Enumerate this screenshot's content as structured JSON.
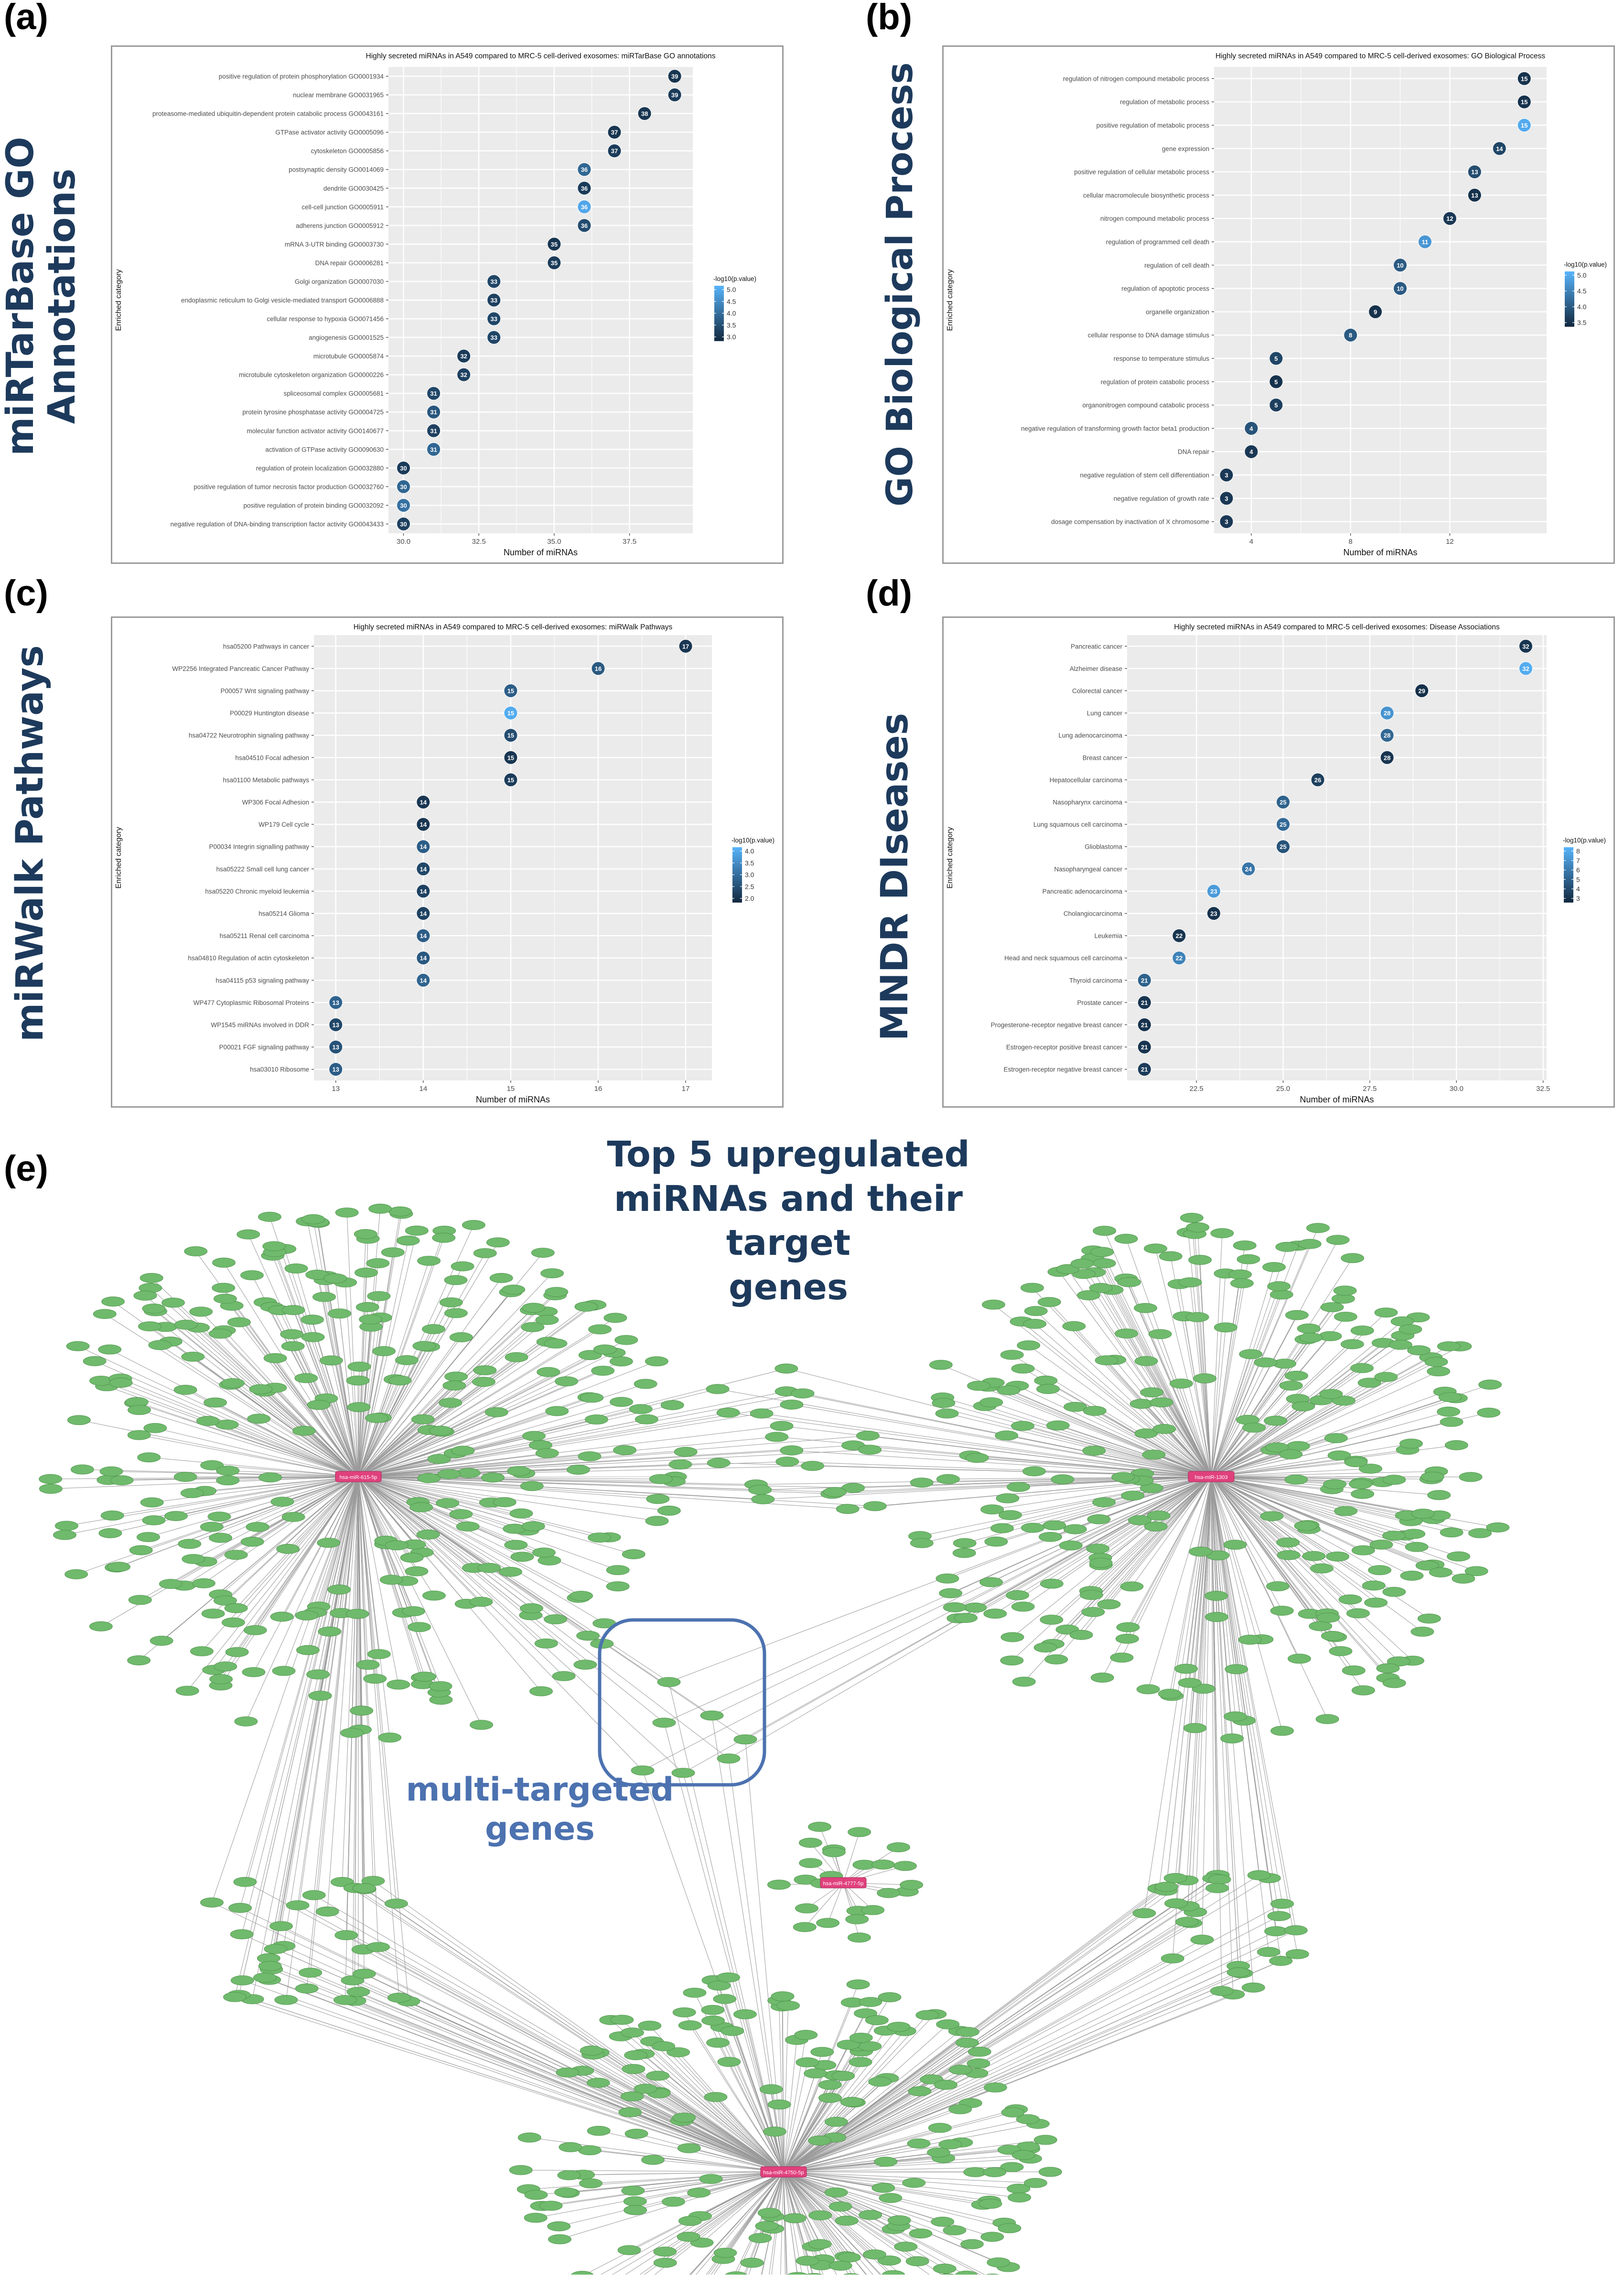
{
  "panels": {
    "a": {
      "letter": "(a)",
      "side_label_line1": "miRTarBase GO",
      "side_label_line2": "Annotations"
    },
    "b": {
      "letter": "(b)",
      "side_label": "GO Biological Process"
    },
    "c": {
      "letter": "(c)",
      "side_label": "miRWalk Pathways"
    },
    "d": {
      "letter": "(d)",
      "side_label": "MNDR DIseases"
    },
    "e": {
      "letter": "(e)",
      "title_line1": "Top 5 upregulated",
      "title_line2": "miRNAs and their target",
      "title_line3": "genes",
      "annotation_line1": "multi-targeted",
      "annotation_line2": "genes"
    }
  },
  "network": {
    "hub_labels": [
      "hsa-miR-615-5p",
      "hsa-miR-1303",
      "hsa-miR-4777-5p",
      "hsa-miR-4750-5p"
    ],
    "node_color": "#6fba6c",
    "hub_color": "#e0417d",
    "edge_color": "#9a9a9a",
    "highlight_color": "#4c72b0"
  },
  "chart_data": [
    {
      "type": "scatter",
      "title": "Highly secreted miRNAs in A549 compared to MRC-5 cell-derived exosomes: miRTarBase GO annotations",
      "xlabel": "Number of miRNAs",
      "ylabel": "Enriched category",
      "xlim": [
        29.5,
        39.6
      ],
      "xticks": [
        30.0,
        32.5,
        35.0,
        37.5
      ],
      "xtick_labels": [
        "30.0",
        "32.5",
        "35.0",
        "37.5"
      ],
      "legend_title": "-log10(p.value)",
      "legend_ticks": [
        "5.0",
        "4.5",
        "4.0",
        "3.5",
        "3.0"
      ],
      "color_range": [
        2.8,
        5.3
      ],
      "categories": [
        "positive regulation of protein phosphorylation GO0001934",
        "nuclear membrane GO0031965",
        "proteasome-mediated ubiquitin-dependent protein catabolic process GO0043161",
        "GTPase activator activity GO0005096",
        "cytoskeleton GO0005856",
        "postsynaptic density GO0014069",
        "dendrite GO0030425",
        "cell-cell junction GO0005911",
        "adherens junction GO0005912",
        "mRNA 3-UTR binding GO0003730",
        "DNA repair GO0006281",
        "Golgi organization GO0007030",
        "endoplasmic reticulum to Golgi vesicle-mediated transport GO0006888",
        "cellular response to hypoxia GO0071456",
        "angiogenesis GO0001525",
        "microtubule GO0005874",
        "microtubule cytoskeleton organization GO0000226",
        "spliceosomal complex GO0005681",
        "protein tyrosine phosphatase activity GO0004725",
        "molecular function activator activity GO0140677",
        "activation of GTPase activity GO0090630",
        "regulation of protein localization GO0032880",
        "positive regulation of tumor necrosis factor production GO0032760",
        "positive regulation of protein binding GO0032092",
        "negative regulation of DNA-binding transcription factor activity GO0043433"
      ],
      "values": [
        39,
        39,
        38,
        37,
        37,
        36,
        36,
        36,
        36,
        35,
        35,
        33,
        33,
        33,
        33,
        32,
        32,
        31,
        31,
        31,
        31,
        30,
        30,
        30,
        30
      ],
      "pvalues": [
        3.0,
        3.1,
        3.0,
        3.0,
        3.1,
        3.9,
        3.1,
        5.1,
        3.4,
        3.0,
        3.1,
        3.3,
        3.2,
        3.3,
        3.3,
        3.1,
        3.2,
        3.3,
        3.6,
        3.2,
        3.9,
        3.1,
        3.9,
        4.1,
        3.2
      ]
    },
    {
      "type": "scatter",
      "title": "Highly secreted miRNAs in A549 compared to MRC-5 cell-derived exosomes: GO Biological Process",
      "xlabel": "Number of miRNAs",
      "ylabel": "Enriched category",
      "xlim": [
        2.5,
        15.9
      ],
      "xticks": [
        4,
        8,
        12
      ],
      "xtick_labels": [
        "4",
        "8",
        "12"
      ],
      "legend_title": "-log10(p.value)",
      "legend_ticks": [
        "5.0",
        "4.5",
        "4.0",
        "3.5"
      ],
      "color_range": [
        3.2,
        5.2
      ],
      "categories": [
        "regulation of nitrogen compound metabolic process",
        "regulation of metabolic process",
        "positive regulation of metabolic process",
        "gene expression",
        "positive regulation of cellular metabolic process",
        "cellular macromolecule biosynthetic process",
        "nitrogen compound metabolic process",
        "regulation of programmed cell death",
        "regulation of cell death",
        "regulation of apoptotic process",
        "organelle organization",
        "cellular response to DNA damage stimulus",
        "response to temperature stimulus",
        "regulation of protein catabolic process",
        "organonitrogen compound catabolic process",
        "negative regulation of transforming growth factor beta1 production",
        "DNA repair",
        "negative regulation of stem cell differentiation",
        "negative regulation of growth rate",
        "dosage compensation by inactivation of X chromosome"
      ],
      "values": [
        15,
        15,
        15,
        14,
        13,
        13,
        12,
        11,
        10,
        10,
        9,
        8,
        5,
        5,
        5,
        4,
        4,
        3,
        3,
        3
      ],
      "pvalues": [
        3.3,
        3.3,
        5.1,
        3.6,
        3.7,
        3.3,
        3.4,
        4.8,
        3.9,
        3.9,
        3.3,
        3.9,
        3.6,
        3.3,
        3.5,
        3.8,
        3.4,
        3.4,
        3.4,
        3.4
      ]
    },
    {
      "type": "scatter",
      "title": "Highly secreted miRNAs in A549 compared to MRC-5 cell-derived exosomes: miRWalk Pathways",
      "xlabel": "Number of miRNAs",
      "ylabel": "Enriched category",
      "xlim": [
        12.75,
        17.3
      ],
      "xticks": [
        13,
        14,
        15,
        16,
        17
      ],
      "xtick_labels": [
        "13",
        "14",
        "15",
        "16",
        "17"
      ],
      "legend_title": "-log10(p.value)",
      "legend_ticks": [
        "4.0",
        "3.5",
        "3.0",
        "2.5",
        "2.0"
      ],
      "color_range": [
        1.8,
        4.2
      ],
      "categories": [
        "hsa05200 Pathways in cancer",
        "WP2256 Integrated Pancreatic Cancer Pathway",
        "P00057 Wnt signaling pathway",
        "P00029 Huntington disease",
        "hsa04722 Neurotrophin signaling pathway",
        "hsa04510 Focal adhesion",
        "hsa01100 Metabolic pathways",
        "WP306 Focal Adhesion",
        "WP179 Cell cycle",
        "P00034 Integrin signalling pathway",
        "hsa05222 Small cell lung cancer",
        "hsa05220 Chronic myeloid leukemia",
        "hsa05214 Glioma",
        "hsa05211 Renal cell carcinoma",
        "hsa04810 Regulation of actin cytoskeleton",
        "hsa04115 p53 signaling pathway",
        "WP477 Cytoplasmic Ribosomal Proteins",
        "WP1545 miRNAs involved in DDR",
        "P00021 FGF signaling pathway",
        "hsa03010 Ribosome"
      ],
      "values": [
        17,
        16,
        15,
        15,
        15,
        15,
        15,
        14,
        14,
        14,
        14,
        14,
        14,
        14,
        14,
        14,
        13,
        13,
        13,
        13
      ],
      "pvalues": [
        2.0,
        2.6,
        2.7,
        4.1,
        2.4,
        2.0,
        2.1,
        2.0,
        2.0,
        2.7,
        2.3,
        2.2,
        2.2,
        2.7,
        2.6,
        2.8,
        2.8,
        2.3,
        2.5,
        2.7
      ]
    },
    {
      "type": "scatter",
      "title": "Highly secreted miRNAs in A549 compared to MRC-5 cell-derived exosomes: Disease Associations",
      "xlabel": "Number of miRNAs",
      "ylabel": "Enriched category",
      "xlim": [
        20.5,
        32.6
      ],
      "xticks": [
        22.5,
        25.0,
        27.5,
        30.0,
        32.5
      ],
      "xtick_labels": [
        "22.5",
        "25.0",
        "27.5",
        "30.0",
        "32.5"
      ],
      "legend_title": "-log10(p.value)",
      "legend_ticks": [
        "8",
        "7",
        "6",
        "5",
        "4",
        "3"
      ],
      "color_range": [
        2.8,
        8.2
      ],
      "categories": [
        "Pancreatic cancer",
        "Alzheimer disease",
        "Colorectal cancer",
        "Lung cancer",
        "Lung adenocarcinoma",
        "Breast cancer",
        "Hepatocellular carcinoma",
        "Nasopharynx carcinoma",
        "Lung squamous cell carcinoma",
        "Glioblastoma",
        "Nasopharyngeal cancer",
        "Pancreatic adenocarcinoma",
        "Cholangiocarcinoma",
        "Leukemia",
        "Head and neck squamous cell carcinoma",
        "Thyroid carcinoma",
        "Prostate cancer",
        "Progesterone-receptor negative breast cancer",
        "Estrogen-receptor positive breast cancer",
        "Estrogen-receptor negative breast cancer"
      ],
      "values": [
        32,
        32,
        29,
        28,
        28,
        28,
        26,
        25,
        25,
        25,
        24,
        23,
        23,
        22,
        22,
        21,
        21,
        21,
        21,
        21
      ],
      "pvalues": [
        3.2,
        8.0,
        3.0,
        7.0,
        5.2,
        3.2,
        3.6,
        5.0,
        5.3,
        4.4,
        5.8,
        7.3,
        3.1,
        3.2,
        6.3,
        5.0,
        3.2,
        3.1,
        3.2,
        3.5
      ]
    }
  ]
}
